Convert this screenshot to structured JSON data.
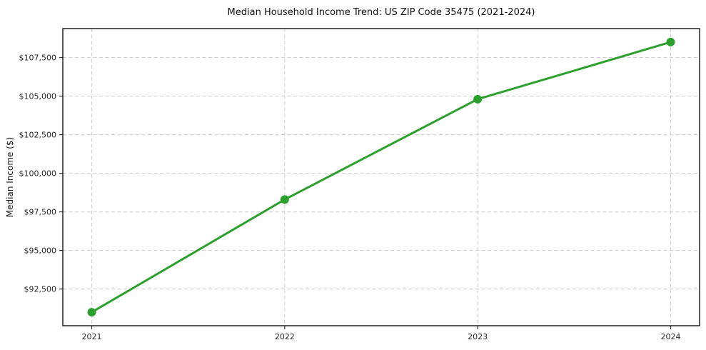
{
  "figure": {
    "title": "Median Household Income Trend: US ZIP Code 35475 (2021-2024)",
    "ylabel": "Median Income ($)"
  },
  "chart_data": {
    "type": "line",
    "title": "Median Household Income Trend: US ZIP Code 35475 (2021-2024)",
    "xlabel": "",
    "ylabel": "Median Income ($)",
    "x": [
      2021,
      2022,
      2023,
      2024
    ],
    "series": [
      {
        "name": "Median household income",
        "values": [
          91000,
          98300,
          104800,
          108500
        ]
      }
    ],
    "xticks": [
      2021,
      2022,
      2023,
      2024
    ],
    "xtick_labels": [
      "2021",
      "2022",
      "2023",
      "2024"
    ],
    "yticks": [
      92500,
      95000,
      97500,
      100000,
      102500,
      105000,
      107500
    ],
    "ytick_labels": [
      "$92,500",
      "$95,000",
      "$97,500",
      "$100,000",
      "$102,500",
      "$105,000",
      "$107,500"
    ],
    "xlim": [
      2020.85,
      2024.15
    ],
    "ylim": [
      90125,
      109375
    ],
    "grid": true,
    "legend": "none",
    "line_color": "#2ca02c",
    "marker": "o",
    "grid_color": "#cccccc",
    "spine_color": "#000000",
    "background_color": "#ffffff"
  }
}
